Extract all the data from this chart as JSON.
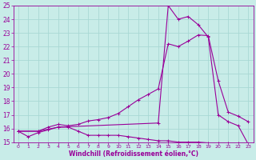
{
  "background_color": "#c8ece8",
  "grid_color": "#a8d8d4",
  "line_color": "#990099",
  "xlabel": "Windchill (Refroidissement éolien,°C)",
  "xlim": [
    -0.5,
    23.5
  ],
  "ylim": [
    15,
    25
  ],
  "xticks": [
    0,
    1,
    2,
    3,
    4,
    5,
    6,
    7,
    8,
    9,
    10,
    11,
    12,
    13,
    14,
    15,
    16,
    17,
    18,
    19,
    20,
    21,
    22,
    23
  ],
  "yticks": [
    15,
    16,
    17,
    18,
    19,
    20,
    21,
    22,
    23,
    24,
    25
  ],
  "line1_x": [
    0,
    1,
    2,
    3,
    4,
    5,
    6,
    7,
    8,
    9,
    10,
    11,
    12,
    13,
    14,
    15,
    16,
    17,
    18,
    19,
    20,
    21,
    22,
    23
  ],
  "line1_y": [
    15.8,
    15.4,
    15.7,
    15.9,
    16.1,
    16.1,
    15.8,
    15.5,
    15.5,
    15.5,
    15.5,
    15.4,
    15.3,
    15.2,
    15.1,
    15.1,
    15.0,
    15.0,
    15.0,
    14.95,
    14.95,
    14.95,
    14.9,
    14.85
  ],
  "line2_x": [
    0,
    2,
    3,
    4,
    5,
    6,
    7,
    8,
    9,
    10,
    11,
    12,
    13,
    14,
    15,
    16,
    17,
    18,
    19,
    20,
    21,
    22,
    23
  ],
  "line2_y": [
    15.8,
    15.8,
    16.1,
    16.3,
    16.2,
    16.3,
    16.55,
    16.65,
    16.8,
    17.1,
    17.6,
    18.1,
    18.5,
    18.9,
    22.2,
    22.0,
    22.4,
    22.85,
    22.8,
    19.5,
    17.2,
    16.9,
    16.5
  ],
  "line3_x": [
    0,
    2,
    4,
    14,
    15,
    16,
    17,
    18,
    19,
    20,
    21,
    22,
    23
  ],
  "line3_y": [
    15.8,
    15.8,
    16.1,
    16.4,
    25.0,
    24.0,
    24.2,
    23.6,
    22.7,
    17.0,
    16.5,
    16.2,
    14.85
  ]
}
